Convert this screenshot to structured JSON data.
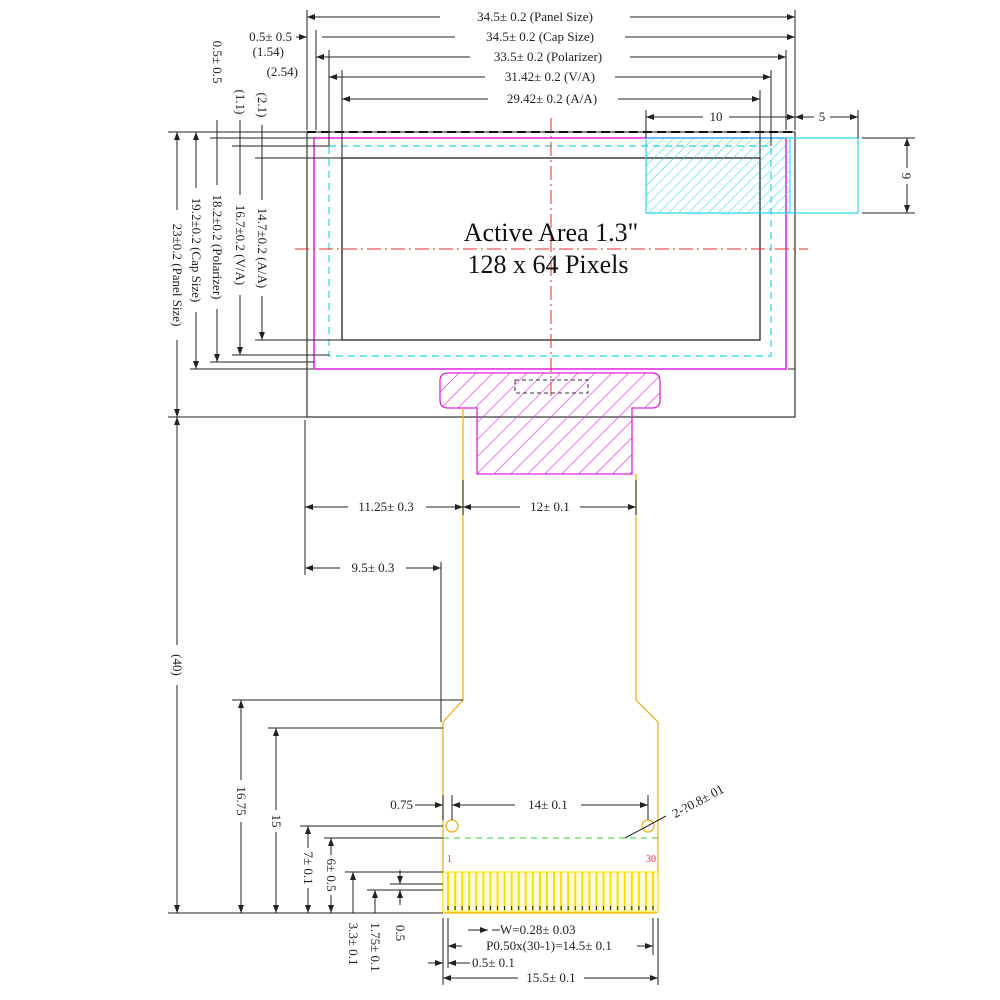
{
  "title": {
    "line1": "Active Area 1.3\"",
    "line2": "128 x 64 Pixels"
  },
  "top_dims": {
    "panel": "34.5± 0.2 (Panel Size)",
    "cap": "34.5± 0.2 (Cap Size)",
    "polarizer": "33.5± 0.2 (Polarizer)",
    "va": "31.42± 0.2 (V/A)",
    "aa": "29.42± 0.2 (A/A)",
    "offset_cap": "0.5± 0.5",
    "offset_va": "(1.54)",
    "offset_aa": "(2.54)",
    "ten": "10",
    "five": "5",
    "nine": "9"
  },
  "left_dims": {
    "panel": "23±0.2 (Panel Size)",
    "cap": "19.2±0.2 (Cap Size)",
    "polarizer": "18.2±0.2 (Polarizer)",
    "va": "16.7±0.2 (V/A)",
    "aa": "14.7±0.2 (A/A)",
    "offset_pol": "0.5± 0.5",
    "offset_va": "(1.1)",
    "offset_aa": "(2.1)",
    "fpc": "(40)"
  },
  "fpc_dims": {
    "left_offset": "11.25± 0.3",
    "neck_width": "12± 0.1",
    "tail_offset": "9.5± 0.3",
    "h1675": "16.75",
    "h15": "15",
    "h7": "7± 0.1",
    "h6": "6± 0.5",
    "h33": "3.3± 0.1",
    "h175": "1.75± 0.1",
    "h05": "0.5",
    "hole_offset": "0.75",
    "hole_pitch": "14± 0.1",
    "hole_dia": "2-?0.8± 01",
    "width_w": "W=0.28± 0.03",
    "pitch": "P0.50x(30-1)=14.5± 0.1",
    "edge": "0.5± 0.1",
    "total": "15.5± 0.1",
    "pin_first": "1",
    "pin_last": "30"
  },
  "colors": {
    "polarizer": "#e020e0",
    "va": "#20d8e8",
    "fpc": "#f0b020",
    "contacts": "#f8e000",
    "center": "#e03030",
    "stiffener": "#30d030"
  }
}
